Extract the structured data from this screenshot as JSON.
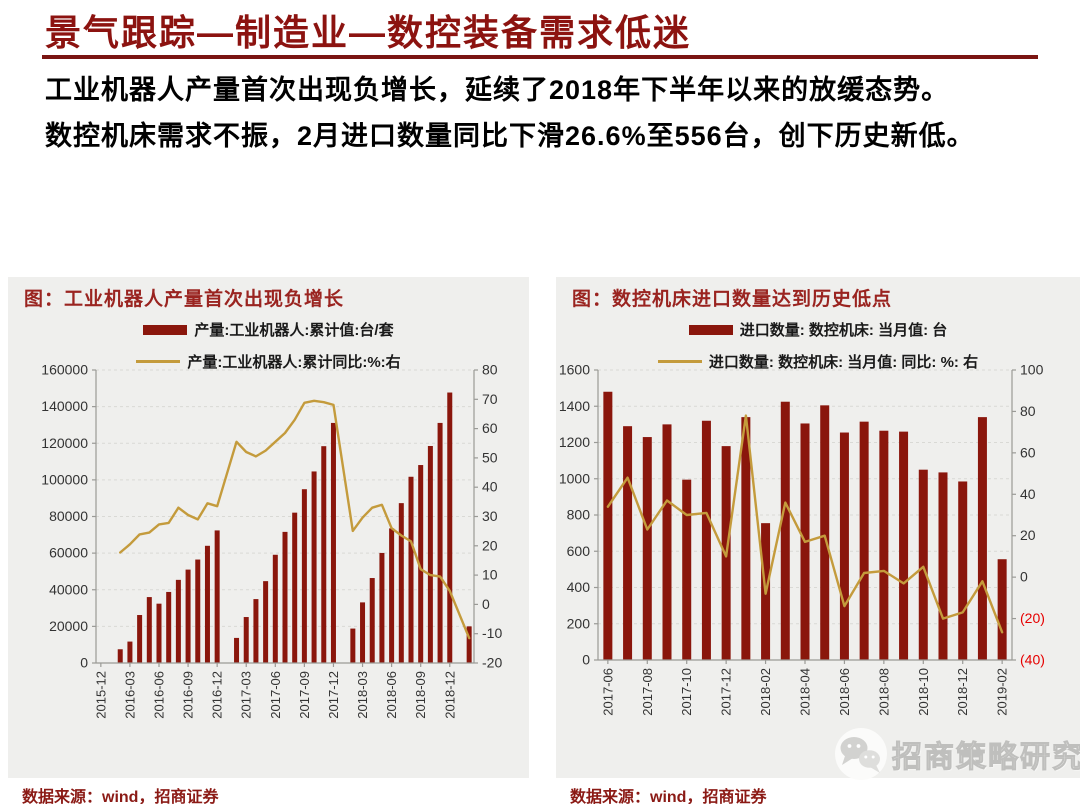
{
  "page": {
    "title": "景气跟踪—制造业—数控装备需求低迷",
    "paragraph_line1": "工业机器人产量首次出现负增长，延续了2018年下半年以来的放缓态势。",
    "paragraph_line2": "数控机床需求不振，2月进口数量同比下滑26.6%至556台，创下历史新低。",
    "watermark_text": "招商策略研究"
  },
  "colors": {
    "maroon": "#8A160C",
    "gold": "#C49B3C",
    "title_red": "#8C1310",
    "rule_red": "#7A1512",
    "source_red": "#8B1A15",
    "panel_bg": "#EFEFED",
    "grid": "#D9D9D5",
    "axis": "#9A9A96",
    "tick_text": "#333333",
    "negative_red": "#E60000"
  },
  "chart_data": [
    {
      "id": "robot-output",
      "type": "bar+line",
      "title": "图：工业机器人产量首次出现负增长",
      "source": "数据来源：wind，招商证券",
      "legend": [
        "产量:工业机器人:累计值:台/套",
        "产量:工业机器人:累计同比:%:右"
      ],
      "left_axis": {
        "min": 0,
        "max": 160000,
        "step": 20000,
        "paren_negative": false
      },
      "right_axis": {
        "min": -20,
        "max": 80,
        "step": 10,
        "paren_negative": false
      },
      "x_tick_every": 3,
      "months": [
        "2015-12",
        "2016-01",
        "2016-02",
        "2016-03",
        "2016-04",
        "2016-05",
        "2016-06",
        "2016-07",
        "2016-08",
        "2016-09",
        "2016-10",
        "2016-11",
        "2016-12",
        "2017-01",
        "2017-02",
        "2017-03",
        "2017-04",
        "2017-05",
        "2017-06",
        "2017-07",
        "2017-08",
        "2017-09",
        "2017-10",
        "2017-11",
        "2017-12",
        "2018-01",
        "2018-02",
        "2018-03",
        "2018-04",
        "2018-05",
        "2018-06",
        "2018-07",
        "2018-08",
        "2018-09",
        "2018-10",
        "2018-11",
        "2018-12",
        "2019-01",
        "2019-02"
      ],
      "bars": [
        null,
        null,
        7500,
        11700,
        26200,
        36000,
        32400,
        38800,
        45400,
        51000,
        56500,
        64000,
        72400,
        null,
        13700,
        25100,
        34900,
        44700,
        59100,
        71600,
        82100,
        94900,
        104600,
        118400,
        131100,
        null,
        18800,
        33100,
        46400,
        60100,
        73500,
        87300,
        101700,
        108100,
        118500,
        131100,
        147700,
        null,
        20000
      ],
      "line": [
        null,
        null,
        17.7,
        20.5,
        23.9,
        24.5,
        27.3,
        27.8,
        33,
        30.5,
        29,
        34.5,
        33.5,
        null,
        55.5,
        52,
        50.5,
        52.5,
        55.5,
        58.5,
        63,
        68.8,
        69.5,
        69,
        68.1,
        null,
        25.1,
        29.6,
        33,
        34,
        26,
        23.5,
        21.5,
        12,
        10,
        9.5,
        4.6,
        null,
        -11.5
      ]
    },
    {
      "id": "machine-tool-import",
      "type": "bar+line",
      "title": "图：数控机床进口数量达到历史低点",
      "source": "数据来源：wind，招商证券",
      "legend": [
        "进口数量: 数控机床: 当月值: 台",
        "进口数量: 数控机床: 当月值: 同比: %: 右"
      ],
      "left_axis": {
        "min": 0,
        "max": 1600,
        "step": 200,
        "paren_negative": false
      },
      "right_axis": {
        "min": -40,
        "max": 100,
        "step": 20,
        "paren_negative": true
      },
      "x_tick_every": 2,
      "months": [
        "2017-06",
        "2017-07",
        "2017-08",
        "2017-09",
        "2017-10",
        "2017-11",
        "2017-12",
        "2018-01",
        "2018-02",
        "2018-03",
        "2018-04",
        "2018-05",
        "2018-06",
        "2018-07",
        "2018-08",
        "2018-09",
        "2018-10",
        "2018-11",
        "2018-12",
        "2019-01",
        "2019-02"
      ],
      "bars": [
        1480,
        1290,
        1230,
        1300,
        995,
        1320,
        1180,
        1340,
        755,
        1425,
        1305,
        1405,
        1255,
        1315,
        1265,
        1260,
        1050,
        1035,
        985,
        1340,
        556
      ],
      "line": [
        34,
        48,
        23,
        37,
        30,
        31,
        10,
        78,
        -8,
        36,
        17,
        20,
        -14,
        2,
        3,
        -3,
        5,
        -20,
        -17,
        -2,
        -26.6
      ]
    }
  ]
}
